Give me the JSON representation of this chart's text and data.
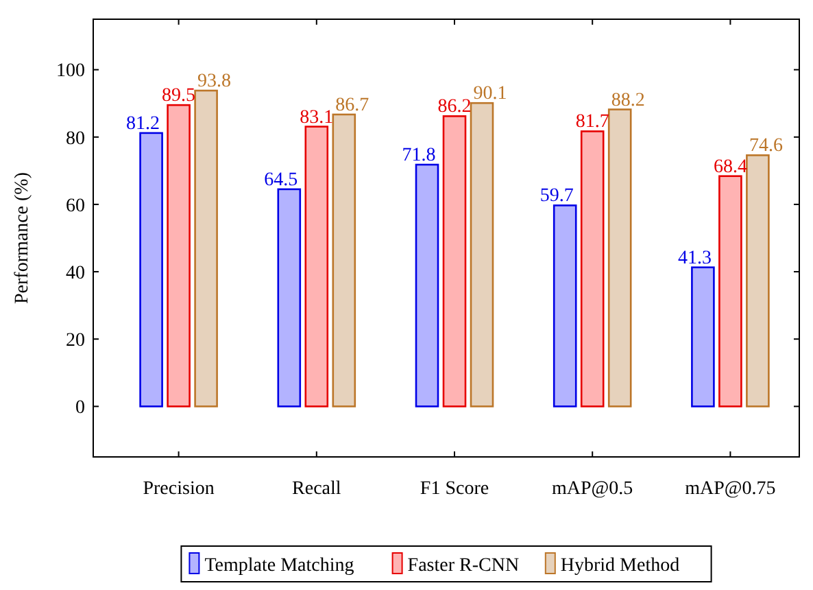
{
  "chart_data": {
    "type": "bar",
    "ylabel": "Performance (%)",
    "categories": [
      "Precision",
      "Recall",
      "F1 Score",
      "mAP@0.5",
      "mAP@0.75"
    ],
    "series": [
      {
        "name": "Template Matching",
        "color": "#b3b3ff",
        "values": [
          81.2,
          64.5,
          71.8,
          59.7,
          41.3
        ]
      },
      {
        "name": "Faster R-CNN",
        "color": "#ffb3b3",
        "values": [
          89.5,
          83.1,
          86.2,
          81.7,
          68.4
        ]
      },
      {
        "name": "Hybrid Method",
        "color": "#e6d2bc",
        "values": [
          93.8,
          86.7,
          90.1,
          88.2,
          74.6
        ]
      }
    ],
    "ylim": [
      -15,
      115
    ],
    "yticks": [
      0,
      20,
      40,
      60,
      80,
      100
    ],
    "data_labels": true,
    "legend": "bottom",
    "grid": false
  }
}
